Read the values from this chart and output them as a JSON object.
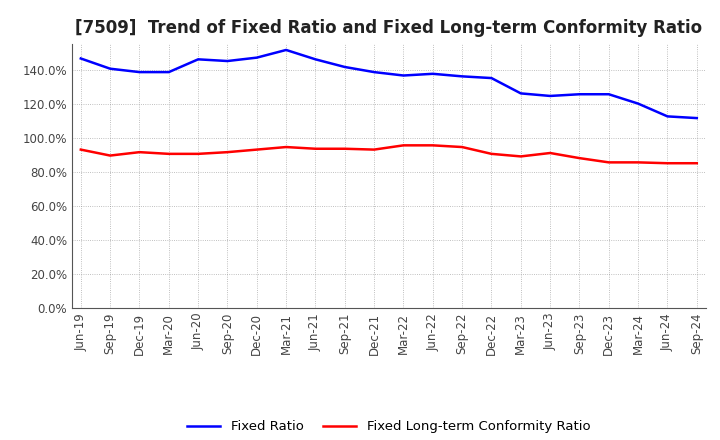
{
  "title": "[7509]  Trend of Fixed Ratio and Fixed Long-term Conformity Ratio",
  "x_labels": [
    "Jun-19",
    "Sep-19",
    "Dec-19",
    "Mar-20",
    "Jun-20",
    "Sep-20",
    "Dec-20",
    "Mar-21",
    "Jun-21",
    "Sep-21",
    "Dec-21",
    "Mar-22",
    "Jun-22",
    "Sep-22",
    "Dec-22",
    "Mar-23",
    "Jun-23",
    "Sep-23",
    "Dec-23",
    "Mar-24",
    "Jun-24",
    "Sep-24"
  ],
  "fixed_ratio": [
    146.5,
    140.5,
    138.5,
    138.5,
    146.0,
    145.0,
    147.0,
    151.5,
    146.0,
    141.5,
    138.5,
    136.5,
    137.5,
    136.0,
    135.0,
    126.0,
    124.5,
    125.5,
    125.5,
    120.0,
    112.5,
    111.5
  ],
  "fixed_longterm": [
    93.0,
    89.5,
    91.5,
    90.5,
    90.5,
    91.5,
    93.0,
    94.5,
    93.5,
    93.5,
    93.0,
    95.5,
    95.5,
    94.5,
    90.5,
    89.0,
    91.0,
    88.0,
    85.5,
    85.5,
    85.0,
    85.0
  ],
  "fixed_ratio_color": "#0000FF",
  "fixed_longterm_color": "#FF0000",
  "ylim": [
    0,
    155
  ],
  "yticks": [
    0,
    20,
    40,
    60,
    80,
    100,
    120,
    140
  ],
  "ytick_labels": [
    "0.0%",
    "20.0%",
    "40.0%",
    "60.0%",
    "80.0%",
    "100.0%",
    "120.0%",
    "140.0%"
  ],
  "background_color": "#FFFFFF",
  "grid_color": "#888888",
  "legend_fixed_ratio": "Fixed Ratio",
  "legend_fixed_longterm": "Fixed Long-term Conformity Ratio",
  "title_fontsize": 12,
  "axis_fontsize": 8.5,
  "legend_fontsize": 9.5
}
